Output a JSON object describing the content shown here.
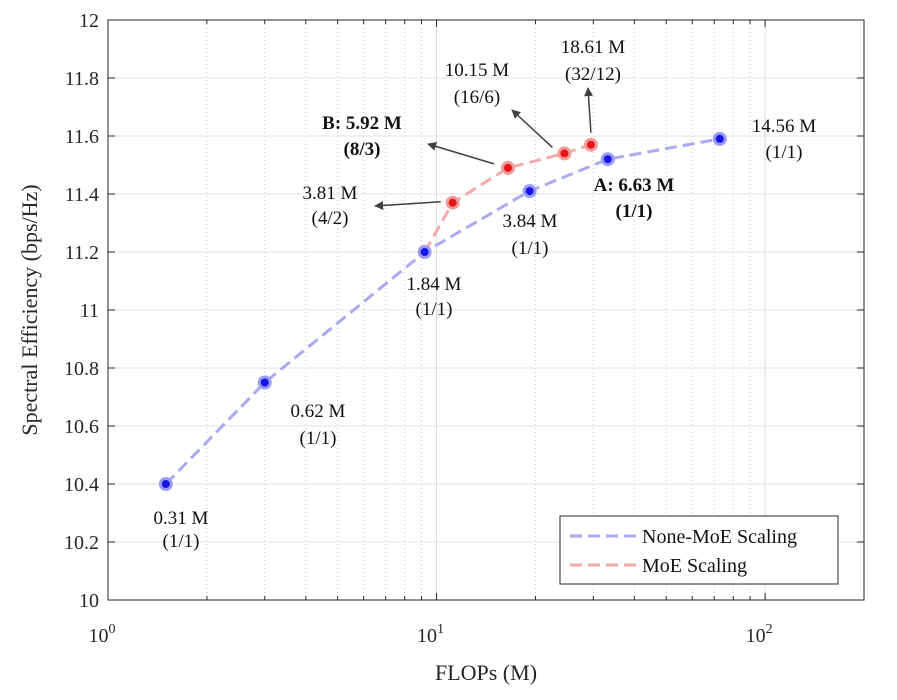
{
  "chart_data": {
    "type": "line",
    "x_scale": "log",
    "xlabel": "FLOPs (M)",
    "ylabel": "Spectral Efficiency (bps/Hz)",
    "xlim": [
      1,
      200
    ],
    "ylim": [
      10,
      12
    ],
    "x_ticks": [
      {
        "value": 1,
        "base": "10",
        "exp": "0"
      },
      {
        "value": 10,
        "base": "10",
        "exp": "1"
      },
      {
        "value": 100,
        "base": "10",
        "exp": "2"
      }
    ],
    "y_ticks": [
      "10",
      "10.2",
      "10.4",
      "10.6",
      "10.8",
      "11",
      "11.2",
      "11.4",
      "11.6",
      "11.8",
      "12"
    ],
    "grid": true,
    "legend_location": "bottom-right",
    "colors": {
      "none_moe_line": "#aaaaf0",
      "none_moe_marker": "#1515e6",
      "moe_line": "#f5aaaa",
      "moe_marker": "#e61515",
      "arrow": "#404040"
    },
    "series": [
      {
        "name": "None-MoE Scaling",
        "points": [
          {
            "x": 1.5,
            "y": 10.4,
            "params": "0.31 M",
            "ratio": "(1/1)"
          },
          {
            "x": 3.0,
            "y": 10.75,
            "params": "0.62 M",
            "ratio": "(1/1)"
          },
          {
            "x": 9.2,
            "y": 11.2,
            "params": "1.84 M",
            "ratio": "(1/1)"
          },
          {
            "x": 19.2,
            "y": 11.41,
            "params": "3.84 M",
            "ratio": "(1/1)"
          },
          {
            "x": 33.2,
            "y": 11.52,
            "params": "A: 6.63 M",
            "ratio": "(1/1)",
            "bold": true
          },
          {
            "x": 72.8,
            "y": 11.59,
            "params": "14.56 M",
            "ratio": "(1/1)"
          }
        ]
      },
      {
        "name": "MoE Scaling",
        "points": [
          {
            "x": 11.2,
            "y": 11.37,
            "params": "3.81 M",
            "ratio": "(4/2)"
          },
          {
            "x": 16.5,
            "y": 11.49,
            "params": "B: 5.92 M",
            "ratio": "(8/3)",
            "bold": true
          },
          {
            "x": 24.5,
            "y": 11.54,
            "params": "10.15 M",
            "ratio": "(16/6)"
          },
          {
            "x": 29.5,
            "y": 11.57,
            "params": "18.61 M",
            "ratio": "(32/12)"
          }
        ]
      }
    ]
  }
}
